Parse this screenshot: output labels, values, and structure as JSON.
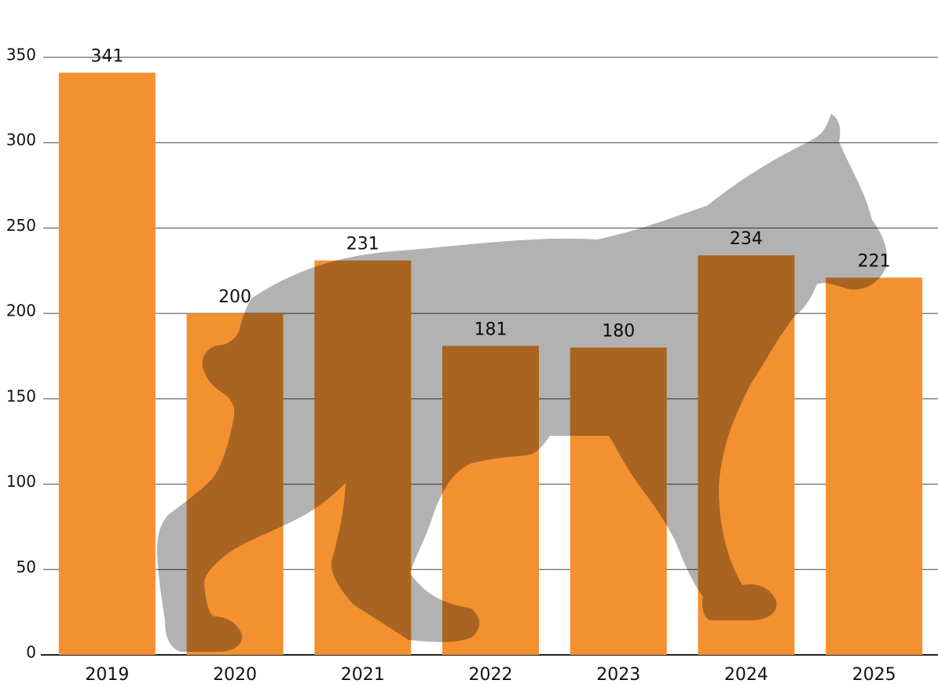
{
  "chart_data": {
    "type": "bar",
    "categories": [
      "2019",
      "2020",
      "2021",
      "2022",
      "2023",
      "2024",
      "2025"
    ],
    "values": [
      341,
      200,
      231,
      181,
      180,
      234,
      221
    ],
    "color": "#f39030",
    "ylim": [
      0,
      350
    ],
    "yticks": [
      0,
      50,
      100,
      150,
      200,
      250,
      300,
      350
    ],
    "grid": true
  }
}
